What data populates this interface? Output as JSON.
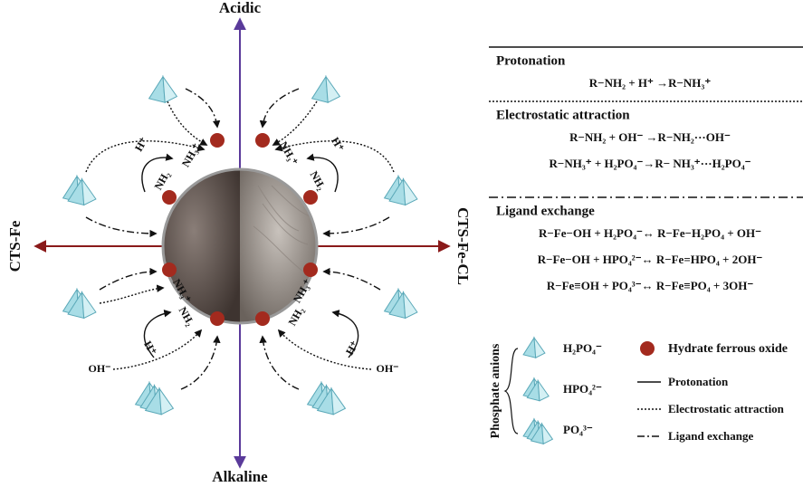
{
  "axes": {
    "top": "Acidic",
    "bottom": "Alkaline",
    "left": "CTS-Fe",
    "right": "CTS-Fe-CL"
  },
  "diagram_labels": [
    "NH₃⁺",
    "NH₂",
    "H⁺",
    "NH₃⁺",
    "NH₂",
    "H⁺",
    "NH₃⁺",
    "NH₂",
    "H⁺",
    "NH₃⁺",
    "NH₂",
    "H⁺",
    "OH⁻",
    "OH⁻"
  ],
  "mechanisms": [
    {
      "title": "Protonation",
      "equations": [
        "R−NH₂ + H⁺ →R−NH₃⁺"
      ]
    },
    {
      "title": "Electrostatic attraction",
      "equations": [
        "R−NH₂ + OH⁻ →R−NH₂···OH⁻",
        "R−NH₃⁺ + H₂PO₄⁻→R− NH₃⁺···H₂PO₄⁻"
      ]
    },
    {
      "title": "Ligand exchange",
      "equations": [
        "R−Fe−OH + H₂PO₄⁻↔ R−Fe−H₂PO₄ + OH⁻",
        "R−Fe−OH + HPO₄²⁻↔ R−Fe=HPO₄ + 2OH⁻",
        "R−Fe≡OH + PO₄³⁻↔ R−Fe≡PO₄ + 3OH⁻"
      ]
    }
  ],
  "legend": {
    "group_label": "Phosphate anions",
    "anions": [
      "H₂PO₄⁻",
      "HPO₄²⁻",
      "PO₄³⁻"
    ],
    "dot": "Hydrate ferrous oxide",
    "lines": [
      "Protonation",
      "Electrostatic attraction",
      "Ligand exchange"
    ]
  }
}
